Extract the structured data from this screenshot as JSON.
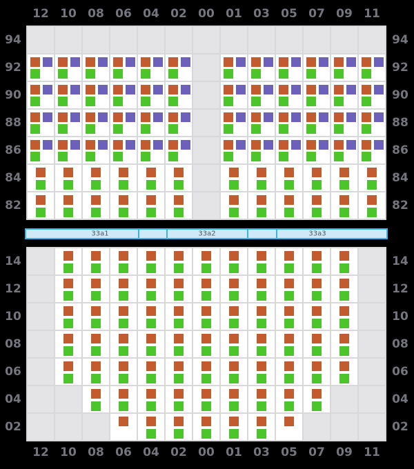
{
  "columns": [
    "12",
    "10",
    "08",
    "06",
    "04",
    "02",
    "00",
    "01",
    "03",
    "05",
    "07",
    "09",
    "11"
  ],
  "top_section": {
    "name": "deck-tiers",
    "rows": [
      {
        "label": "94",
        "cells": "eeeeeeeeeeeee"
      },
      {
        "label": "92",
        "cells": "ttttttetttttt"
      },
      {
        "label": "90",
        "cells": "ttttttetttttt"
      },
      {
        "label": "88",
        "cells": "ttttttetttttt"
      },
      {
        "label": "86",
        "cells": "ttttttetttttt"
      },
      {
        "label": "84",
        "cells": "ddddddedddddd"
      },
      {
        "label": "82",
        "cells": "ddddddedddddd"
      }
    ]
  },
  "hatch_bar": {
    "labels": [
      "33a1",
      "33a2",
      "33a3"
    ]
  },
  "bottom_section": {
    "name": "hold-tiers",
    "rows": [
      {
        "label": "14",
        "cells": "eddddddddddde"
      },
      {
        "label": "12",
        "cells": "eddddddddddde"
      },
      {
        "label": "10",
        "cells": "eddddddddddde"
      },
      {
        "label": "08",
        "cells": "eddddddddddde"
      },
      {
        "label": "06",
        "cells": "eddddddddddde"
      },
      {
        "label": "04",
        "cells": "eedddddddddee"
      },
      {
        "label": "02",
        "cells": "eeeodddddoeee"
      }
    ]
  },
  "cell_types": {
    "t": [
      [
        "orange",
        "p-tl"
      ],
      [
        "purple",
        "p-tr"
      ],
      [
        "green",
        "p-bl"
      ]
    ],
    "d": [
      [
        "orange",
        "p-ct"
      ],
      [
        "green",
        "p-cb"
      ]
    ],
    "o": [
      [
        "orange",
        "p-ct"
      ]
    ],
    "e": []
  },
  "colors": {
    "orange": "#c25b2d",
    "green": "#4cc42c",
    "purple": "#6c60ba",
    "cell_empty": "#e4e4e7",
    "cell_white": "#ffffff",
    "grid_line": "#d8d8db",
    "bar_fill": "#cfe9f8",
    "bar_border": "#3cb1e8",
    "label_text": "#75757e",
    "background": "#000000"
  }
}
